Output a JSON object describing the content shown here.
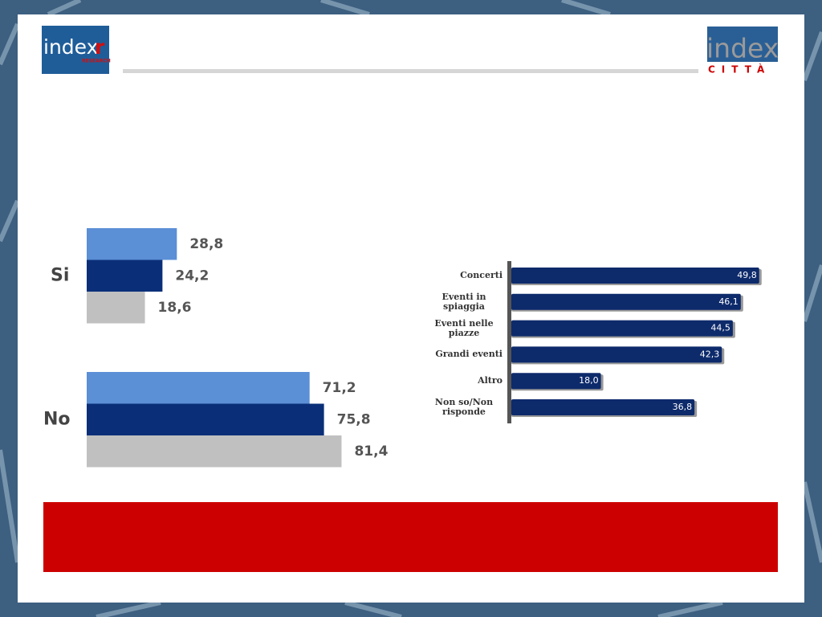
{
  "logos": {
    "left": {
      "text": "index",
      "mark": "r",
      "sub": "RESEARCH"
    },
    "right": {
      "text": "index",
      "sub": "CITTÀ"
    }
  },
  "chart_data": [
    {
      "type": "grouped-hbar",
      "categories": [
        "Si",
        "No"
      ],
      "series": [
        {
          "color": "#5b8fd6",
          "values": [
            28.8,
            71.2
          ],
          "value_labels": [
            "28,8",
            "71,2"
          ]
        },
        {
          "color": "#0a2f78",
          "values": [
            24.2,
            75.8
          ],
          "value_labels": [
            "24,2",
            "75,8"
          ]
        },
        {
          "color": "#c0c0c0",
          "values": [
            18.6,
            81.4
          ],
          "value_labels": [
            "18,6",
            "81,4"
          ]
        }
      ]
    },
    {
      "type": "hbar",
      "categories": [
        "Concerti",
        "Eventi in spiaggia",
        "Eventi nelle piazze",
        "Grandi eventi",
        "Altro",
        "Non so/Non risponde"
      ],
      "values": [
        49.8,
        46.1,
        44.5,
        42.3,
        18.0,
        36.8
      ],
      "value_labels": [
        "49,8",
        "46,1",
        "44,5",
        "42,3",
        "18,0",
        "36,8"
      ],
      "color": "#0d2a6b"
    }
  ]
}
